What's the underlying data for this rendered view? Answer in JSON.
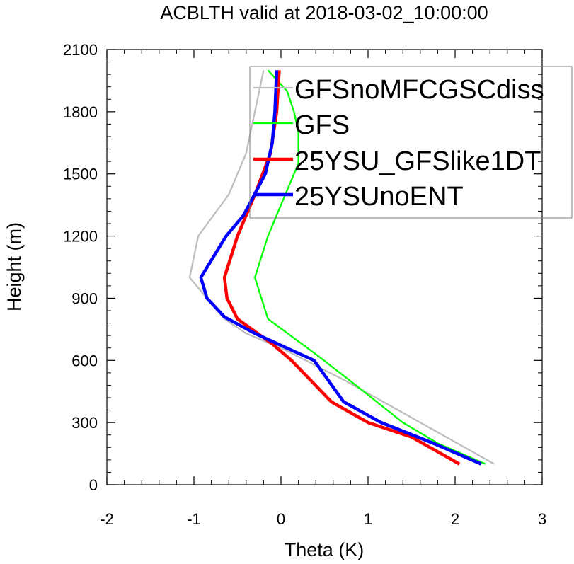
{
  "chart_data": {
    "type": "line",
    "title": "ACBLTH valid at 2018-03-02_10:00:00",
    "xlabel": "Theta (K)",
    "ylabel": "Height (m)",
    "xlim": [
      -2,
      3
    ],
    "ylim": [
      0,
      2100
    ],
    "xticks": [
      "-2",
      "-1",
      "0",
      "1",
      "2",
      "3"
    ],
    "yticks": [
      "0",
      "300",
      "600",
      "900",
      "1200",
      "1500",
      "1800",
      "2100"
    ],
    "grid": false,
    "legend_position": "top-right",
    "series": [
      {
        "name": "GFSnoMFCGSCdiss",
        "color": "#bebebe",
        "points": [
          [
            2.45,
            100
          ],
          [
            1.6,
            300
          ],
          [
            0.75,
            500
          ],
          [
            0.05,
            650
          ],
          [
            -0.4,
            730
          ],
          [
            -0.65,
            800
          ],
          [
            -0.85,
            900
          ],
          [
            -1.05,
            1000
          ],
          [
            -0.95,
            1200
          ],
          [
            -0.6,
            1400
          ],
          [
            -0.4,
            1600
          ],
          [
            -0.3,
            1800
          ],
          [
            -0.2,
            2000
          ]
        ],
        "line_width": "thin"
      },
      {
        "name": "GFS",
        "color": "#00ff00",
        "points": [
          [
            2.35,
            100
          ],
          [
            1.8,
            200
          ],
          [
            1.4,
            300
          ],
          [
            0.8,
            500
          ],
          [
            0.4,
            630
          ],
          [
            -0.15,
            800
          ],
          [
            -0.3,
            1000
          ],
          [
            -0.15,
            1200
          ],
          [
            0.05,
            1400
          ],
          [
            0.2,
            1550
          ],
          [
            0.2,
            1700
          ],
          [
            0.15,
            1800
          ],
          [
            0.07,
            1900
          ],
          [
            -0.15,
            2000
          ]
        ],
        "line_width": "thin"
      },
      {
        "name": "25YSU_GFSlike1DT",
        "color": "#ff0000",
        "points": [
          [
            2.05,
            100
          ],
          [
            1.5,
            230
          ],
          [
            1.0,
            300
          ],
          [
            0.58,
            400
          ],
          [
            0.35,
            500
          ],
          [
            0.12,
            600
          ],
          [
            -0.1,
            680
          ],
          [
            -0.5,
            800
          ],
          [
            -0.62,
            900
          ],
          [
            -0.65,
            1000
          ],
          [
            -0.5,
            1200
          ],
          [
            -0.3,
            1400
          ],
          [
            -0.12,
            1600
          ],
          [
            -0.05,
            1800
          ],
          [
            -0.02,
            2000
          ]
        ],
        "line_width": "thick"
      },
      {
        "name": "25YSUnoENT",
        "color": "#0000ff",
        "points": [
          [
            2.3,
            100
          ],
          [
            1.75,
            200
          ],
          [
            1.15,
            300
          ],
          [
            0.72,
            400
          ],
          [
            0.38,
            600
          ],
          [
            -0.3,
            730
          ],
          [
            -0.65,
            810
          ],
          [
            -0.85,
            900
          ],
          [
            -0.92,
            1000
          ],
          [
            -0.63,
            1200
          ],
          [
            -0.43,
            1300
          ],
          [
            -0.18,
            1500
          ],
          [
            -0.1,
            1650
          ],
          [
            -0.07,
            1800
          ],
          [
            -0.05,
            2000
          ]
        ],
        "line_width": "thick"
      }
    ]
  }
}
